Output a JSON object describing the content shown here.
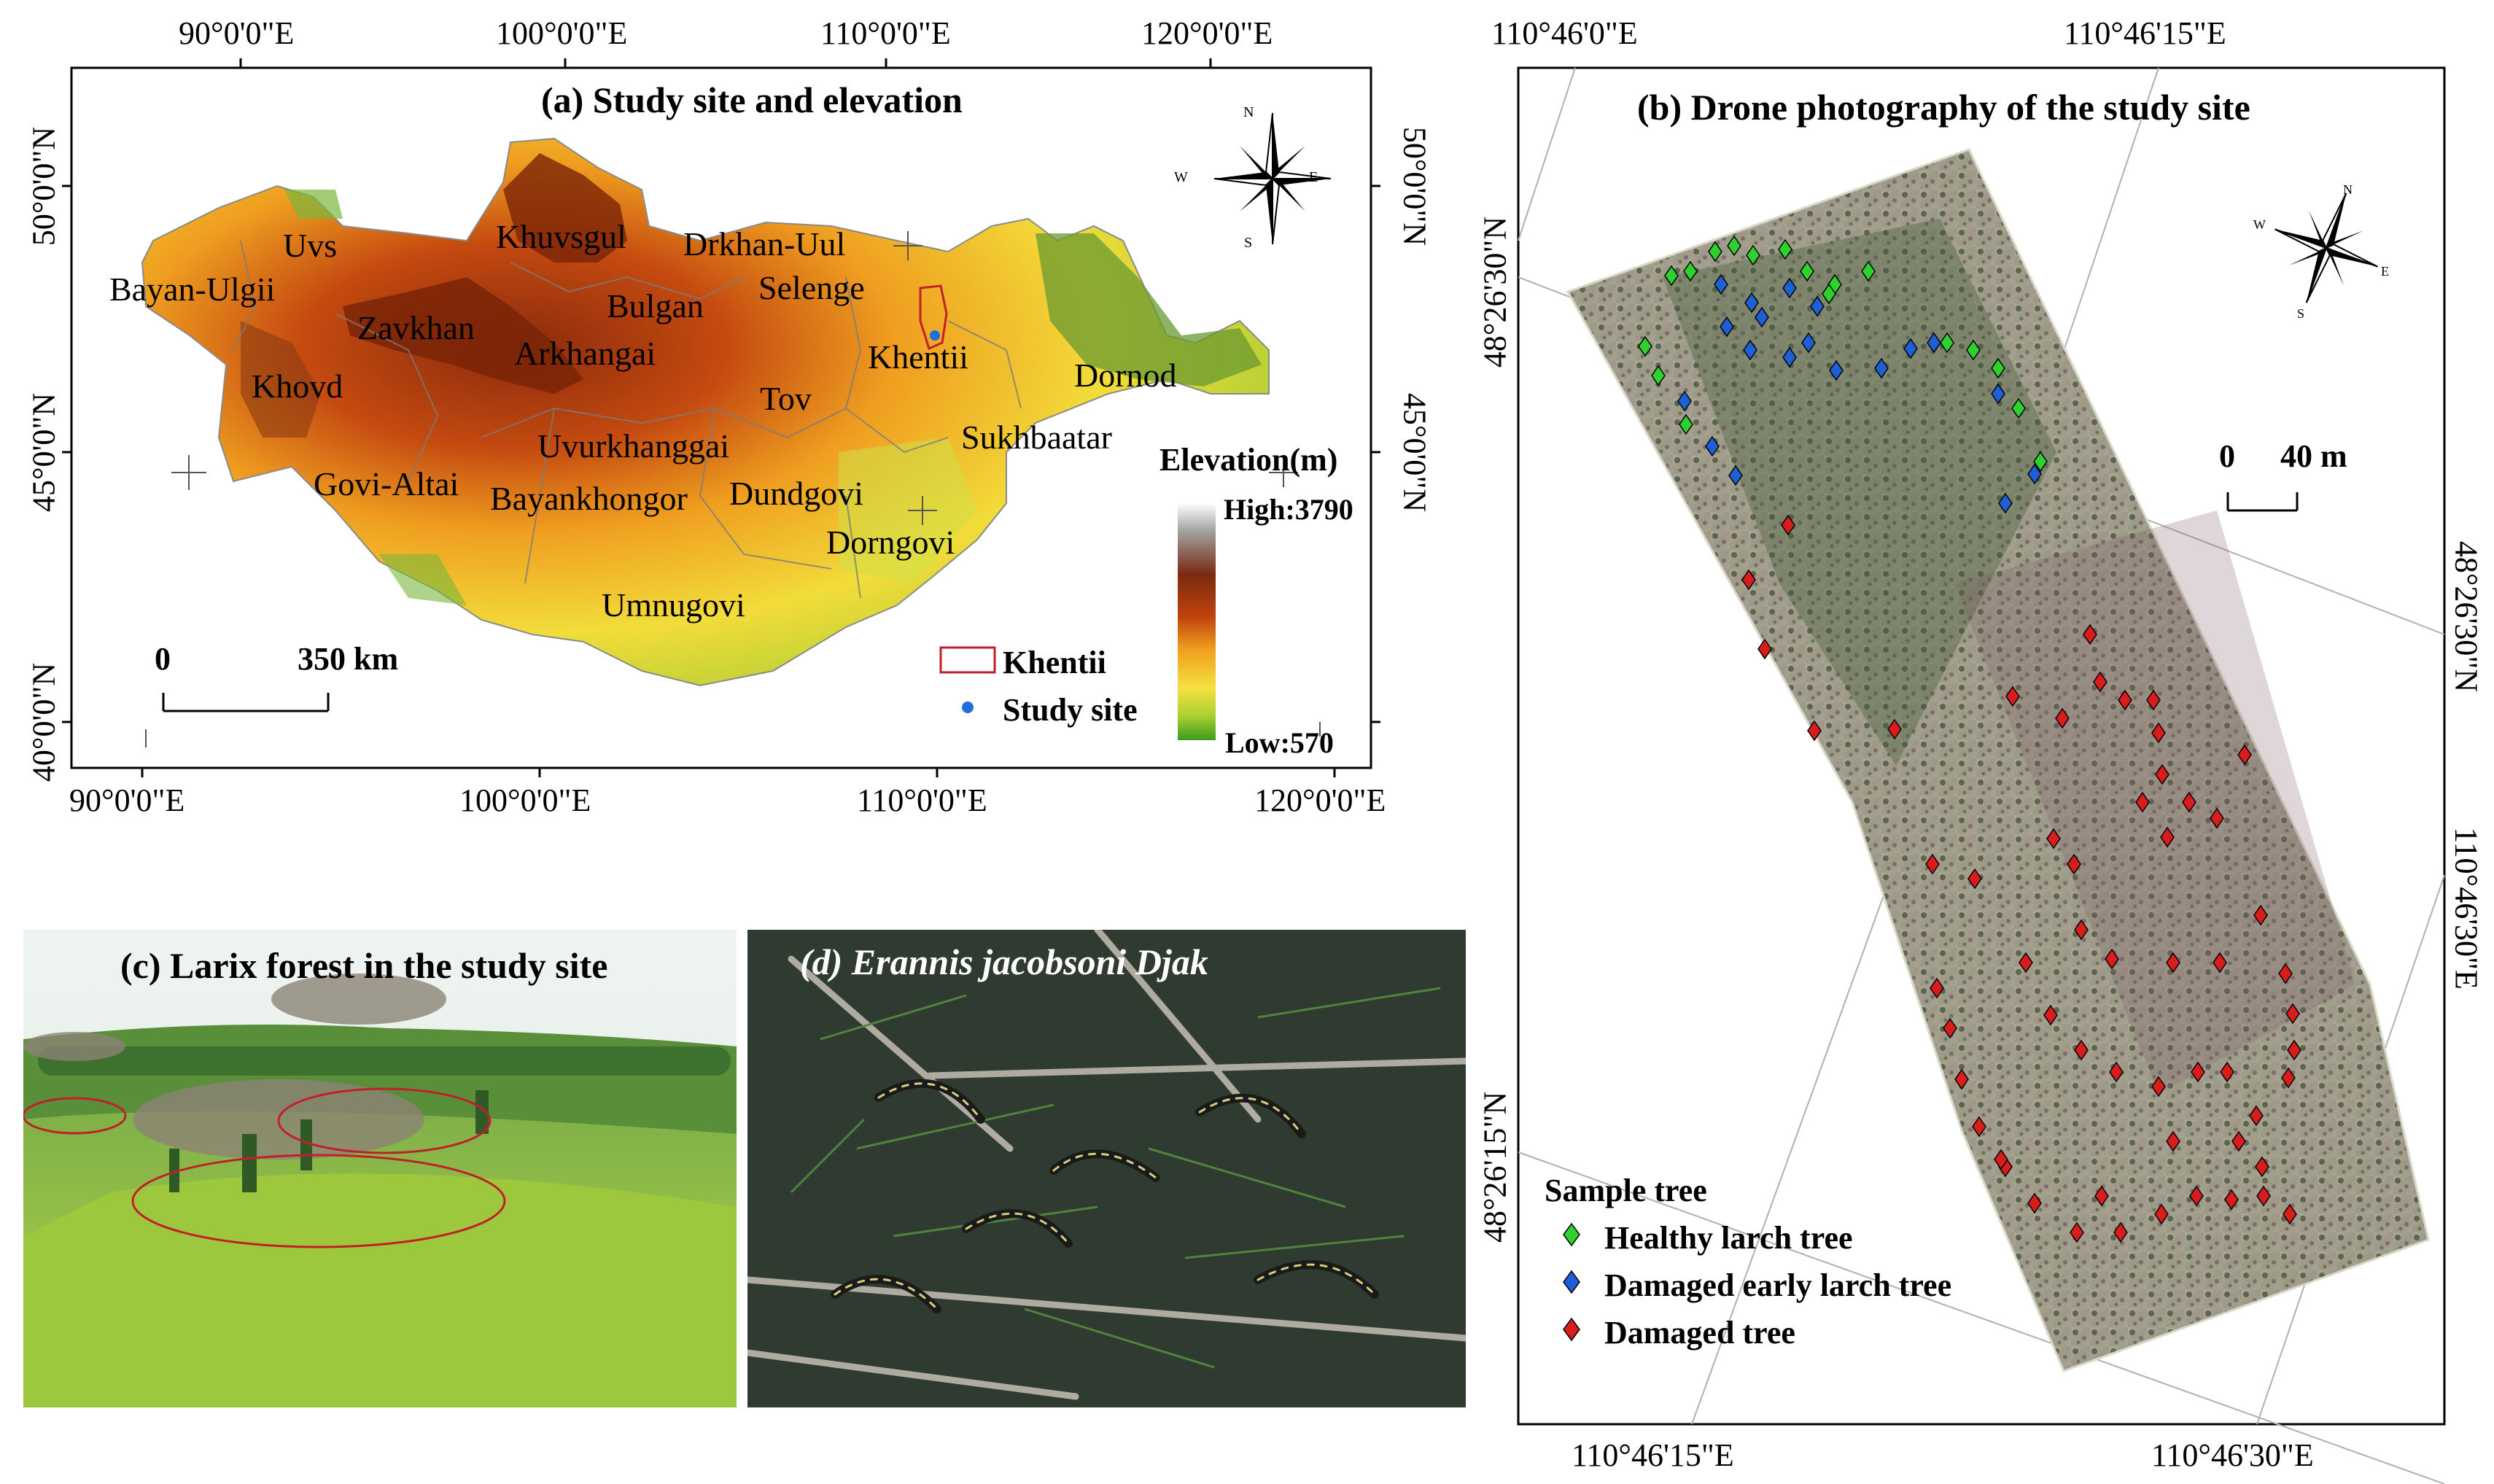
{
  "panel_a": {
    "title": "(a) Study site and elevation",
    "top_lon_labels": [
      "90°0'0\"E",
      "100°0'0\"E",
      "110°0'0\"E",
      "120°0'0\"E"
    ],
    "bottom_lon_labels": [
      "90°0'0\"E",
      "100°0'0\"E",
      "110°0'0\"E",
      "120°0'0\"E"
    ],
    "left_lat_labels": [
      "50°0'0\"N",
      "45°0'0\"N",
      "40°0'0\"N"
    ],
    "right_lat_labels": [
      "50°0'0\"N",
      "45°0'0\"N"
    ],
    "provinces": [
      "Uvs",
      "Bayan-Ulgii",
      "Khuvsgul",
      "Drkhan-Uul",
      "Selenge",
      "Bulgan",
      "Zavkhan",
      "Arkhangai",
      "Khovd",
      "Khentii",
      "Dornod",
      "Tov",
      "Uvurkhanggai",
      "Sukhbaatar",
      "Govi-Altai",
      "Bayankhongor",
      "Dundgovi",
      "Dorngovi",
      "Umnugovi"
    ],
    "scale_bar": {
      "start": "0",
      "end": "350 km"
    },
    "elevation_legend": {
      "title": "Elevation(m)",
      "high": "High:3790",
      "low": "Low:570",
      "colors": [
        "#ffffff",
        "#a0a0a0",
        "#7a2a10",
        "#c0430c",
        "#f0a020",
        "#f5e040",
        "#a8d030",
        "#3c9a1e"
      ]
    },
    "legend_items": [
      "Khentii",
      "Study site"
    ],
    "compass": {
      "N": "N",
      "S": "S",
      "E": "E",
      "W": "W"
    },
    "colors": {
      "khentii_outline": "#c0202a",
      "study_site": "#1f6fd6"
    }
  },
  "panel_b": {
    "title": "(b) Drone photography of the study site",
    "top_lon_labels": [
      "110°46'0\"E",
      "110°46'15\"E"
    ],
    "bottom_lon_labels": [
      "110°46'15\"E",
      "110°46'30\"E"
    ],
    "left_lat_labels": [
      "48°26'30\"N",
      "48°26'15\"N"
    ],
    "right_lat_labels": [
      "48°26'30\"N",
      "110°46'30\"E"
    ],
    "scale_bar": {
      "start": "0",
      "end": "40 m"
    },
    "compass": {
      "N": "N",
      "S": "S",
      "E": "E",
      "W": "W"
    },
    "legend": {
      "title": "Sample tree",
      "items": [
        {
          "label": "Healthy larch tree",
          "color": "#2fd12f"
        },
        {
          "label": "Damaged early larch tree",
          "color": "#1f5fd6"
        },
        {
          "label": "Damaged tree",
          "color": "#d91c1c"
        }
      ]
    }
  },
  "panel_c": {
    "title": "(c) Larix forest in the study site"
  },
  "panel_d": {
    "title": "(d) Erannis jacobsoni Djak"
  }
}
